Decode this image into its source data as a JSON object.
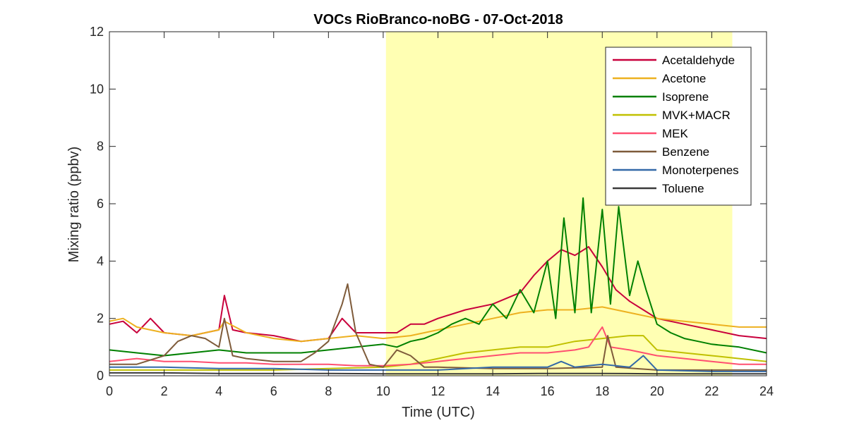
{
  "chart_data": {
    "type": "line",
    "title": "VOCs RioBranco-noBG - 07-Oct-2018",
    "xlabel": "Time (UTC)",
    "ylabel": "Mixing ratio (ppbv)",
    "xlim": [
      0,
      24
    ],
    "ylim": [
      0,
      12
    ],
    "xticks": [
      "0",
      "2",
      "4",
      "6",
      "8",
      "10",
      "12",
      "14",
      "16",
      "18",
      "20",
      "22",
      "24"
    ],
    "yticks": [
      "0",
      "2",
      "4",
      "6",
      "8",
      "10",
      "12"
    ],
    "grid": false,
    "legend_position": "top-right",
    "shaded_region": {
      "x_start": 10.1,
      "x_end": 22.75,
      "color": "#ffffb3"
    },
    "series": [
      {
        "name": "Acetaldehyde",
        "color": "#c8003c",
        "x": [
          0,
          0.5,
          1,
          1.5,
          2,
          3,
          4,
          4.2,
          4.5,
          5,
          6,
          7,
          8,
          8.5,
          9,
          10,
          10.5,
          11,
          11.5,
          12,
          13,
          14,
          15,
          15.5,
          16,
          16.5,
          17,
          17.5,
          18,
          18.5,
          19,
          19.5,
          20,
          21,
          22,
          23,
          24
        ],
        "y": [
          1.8,
          1.9,
          1.5,
          2.0,
          1.5,
          1.4,
          1.6,
          2.8,
          1.6,
          1.5,
          1.4,
          1.2,
          1.3,
          2.0,
          1.5,
          1.5,
          1.5,
          1.8,
          1.8,
          2.0,
          2.3,
          2.5,
          2.9,
          3.5,
          4.0,
          4.4,
          4.2,
          4.5,
          3.8,
          3.0,
          2.6,
          2.3,
          2.0,
          1.8,
          1.6,
          1.4,
          1.3
        ]
      },
      {
        "name": "Acetone",
        "color": "#edb120",
        "x": [
          0,
          0.5,
          1,
          2,
          3,
          4,
          4.2,
          5,
          6,
          7,
          8,
          9,
          10,
          11,
          12,
          13,
          14,
          15,
          16,
          17,
          18,
          19,
          20,
          21,
          22,
          23,
          24
        ],
        "y": [
          1.9,
          2.0,
          1.7,
          1.5,
          1.4,
          1.6,
          1.9,
          1.5,
          1.3,
          1.2,
          1.3,
          1.4,
          1.3,
          1.4,
          1.6,
          1.8,
          2.0,
          2.2,
          2.3,
          2.3,
          2.4,
          2.2,
          2.0,
          1.9,
          1.8,
          1.7,
          1.7
        ]
      },
      {
        "name": "Isoprene",
        "color": "#008000",
        "x": [
          0,
          1,
          2,
          3,
          4,
          5,
          6,
          7,
          8,
          9,
          10,
          10.5,
          11,
          11.5,
          12,
          12.5,
          13,
          13.5,
          14,
          14.5,
          15,
          15.5,
          16,
          16.3,
          16.6,
          17,
          17.3,
          17.6,
          18,
          18.3,
          18.6,
          19,
          19.3,
          19.6,
          20,
          20.5,
          21,
          21.5,
          22,
          23,
          24
        ],
        "y": [
          0.9,
          0.8,
          0.7,
          0.8,
          0.9,
          0.8,
          0.8,
          0.8,
          0.9,
          1.0,
          1.1,
          1.0,
          1.2,
          1.3,
          1.5,
          1.8,
          2.0,
          1.8,
          2.5,
          2.0,
          3.0,
          2.2,
          4.0,
          2.0,
          5.5,
          2.2,
          6.2,
          2.2,
          5.8,
          2.5,
          5.9,
          2.8,
          4.0,
          3.0,
          1.8,
          1.5,
          1.3,
          1.2,
          1.1,
          1.0,
          0.8
        ]
      },
      {
        "name": "MVK+MACR",
        "color": "#c0c000",
        "x": [
          0,
          2,
          4,
          6,
          8,
          10,
          11,
          12,
          13,
          14,
          15,
          16,
          17,
          18,
          19,
          19.5,
          20,
          21,
          22,
          23,
          24
        ],
        "y": [
          0.2,
          0.2,
          0.2,
          0.2,
          0.25,
          0.3,
          0.4,
          0.6,
          0.8,
          0.9,
          1.0,
          1.0,
          1.2,
          1.3,
          1.4,
          1.4,
          0.9,
          0.8,
          0.7,
          0.6,
          0.5
        ]
      },
      {
        "name": "MEK",
        "color": "#ff4f70",
        "x": [
          0,
          1,
          2,
          3,
          4,
          5,
          6,
          7,
          8,
          9,
          10,
          11,
          12,
          13,
          14,
          15,
          16,
          17,
          17.5,
          18,
          18.3,
          19,
          20,
          21,
          22,
          23,
          24
        ],
        "y": [
          0.5,
          0.6,
          0.5,
          0.5,
          0.45,
          0.45,
          0.4,
          0.4,
          0.4,
          0.35,
          0.35,
          0.4,
          0.5,
          0.6,
          0.7,
          0.8,
          0.8,
          0.9,
          1.0,
          1.7,
          1.0,
          0.9,
          0.7,
          0.6,
          0.5,
          0.4,
          0.4
        ]
      },
      {
        "name": "Benzene",
        "color": "#7e5b3a",
        "x": [
          0,
          1,
          2,
          2.5,
          3,
          3.5,
          4,
          4.2,
          4.5,
          5,
          6,
          7,
          7.5,
          8,
          8.5,
          8.7,
          9,
          9.5,
          10,
          10.5,
          11,
          11.5,
          12,
          14,
          16,
          18,
          18.2,
          18.5,
          20,
          22,
          24
        ],
        "y": [
          0.4,
          0.4,
          0.7,
          1.2,
          1.4,
          1.3,
          1.0,
          2.0,
          0.7,
          0.6,
          0.5,
          0.5,
          0.8,
          1.2,
          2.5,
          3.2,
          1.5,
          0.4,
          0.3,
          0.9,
          0.7,
          0.3,
          0.3,
          0.25,
          0.25,
          0.3,
          1.4,
          0.3,
          0.2,
          0.2,
          0.2
        ]
      },
      {
        "name": "Monoterpenes",
        "color": "#3469a8",
        "x": [
          0,
          2,
          4,
          6,
          8,
          10,
          12,
          14,
          16,
          16.5,
          17,
          18,
          19,
          19.5,
          20,
          22,
          24
        ],
        "y": [
          0.3,
          0.3,
          0.25,
          0.25,
          0.2,
          0.2,
          0.2,
          0.3,
          0.3,
          0.5,
          0.3,
          0.4,
          0.3,
          0.7,
          0.2,
          0.15,
          0.15
        ]
      },
      {
        "name": "Toluene",
        "color": "#3a3a3a",
        "x": [
          0,
          2,
          4,
          6,
          8,
          10,
          12,
          14,
          16,
          18,
          20,
          22,
          24
        ],
        "y": [
          0.1,
          0.1,
          0.08,
          0.08,
          0.08,
          0.07,
          0.07,
          0.07,
          0.08,
          0.08,
          0.07,
          0.07,
          0.07
        ]
      }
    ]
  }
}
